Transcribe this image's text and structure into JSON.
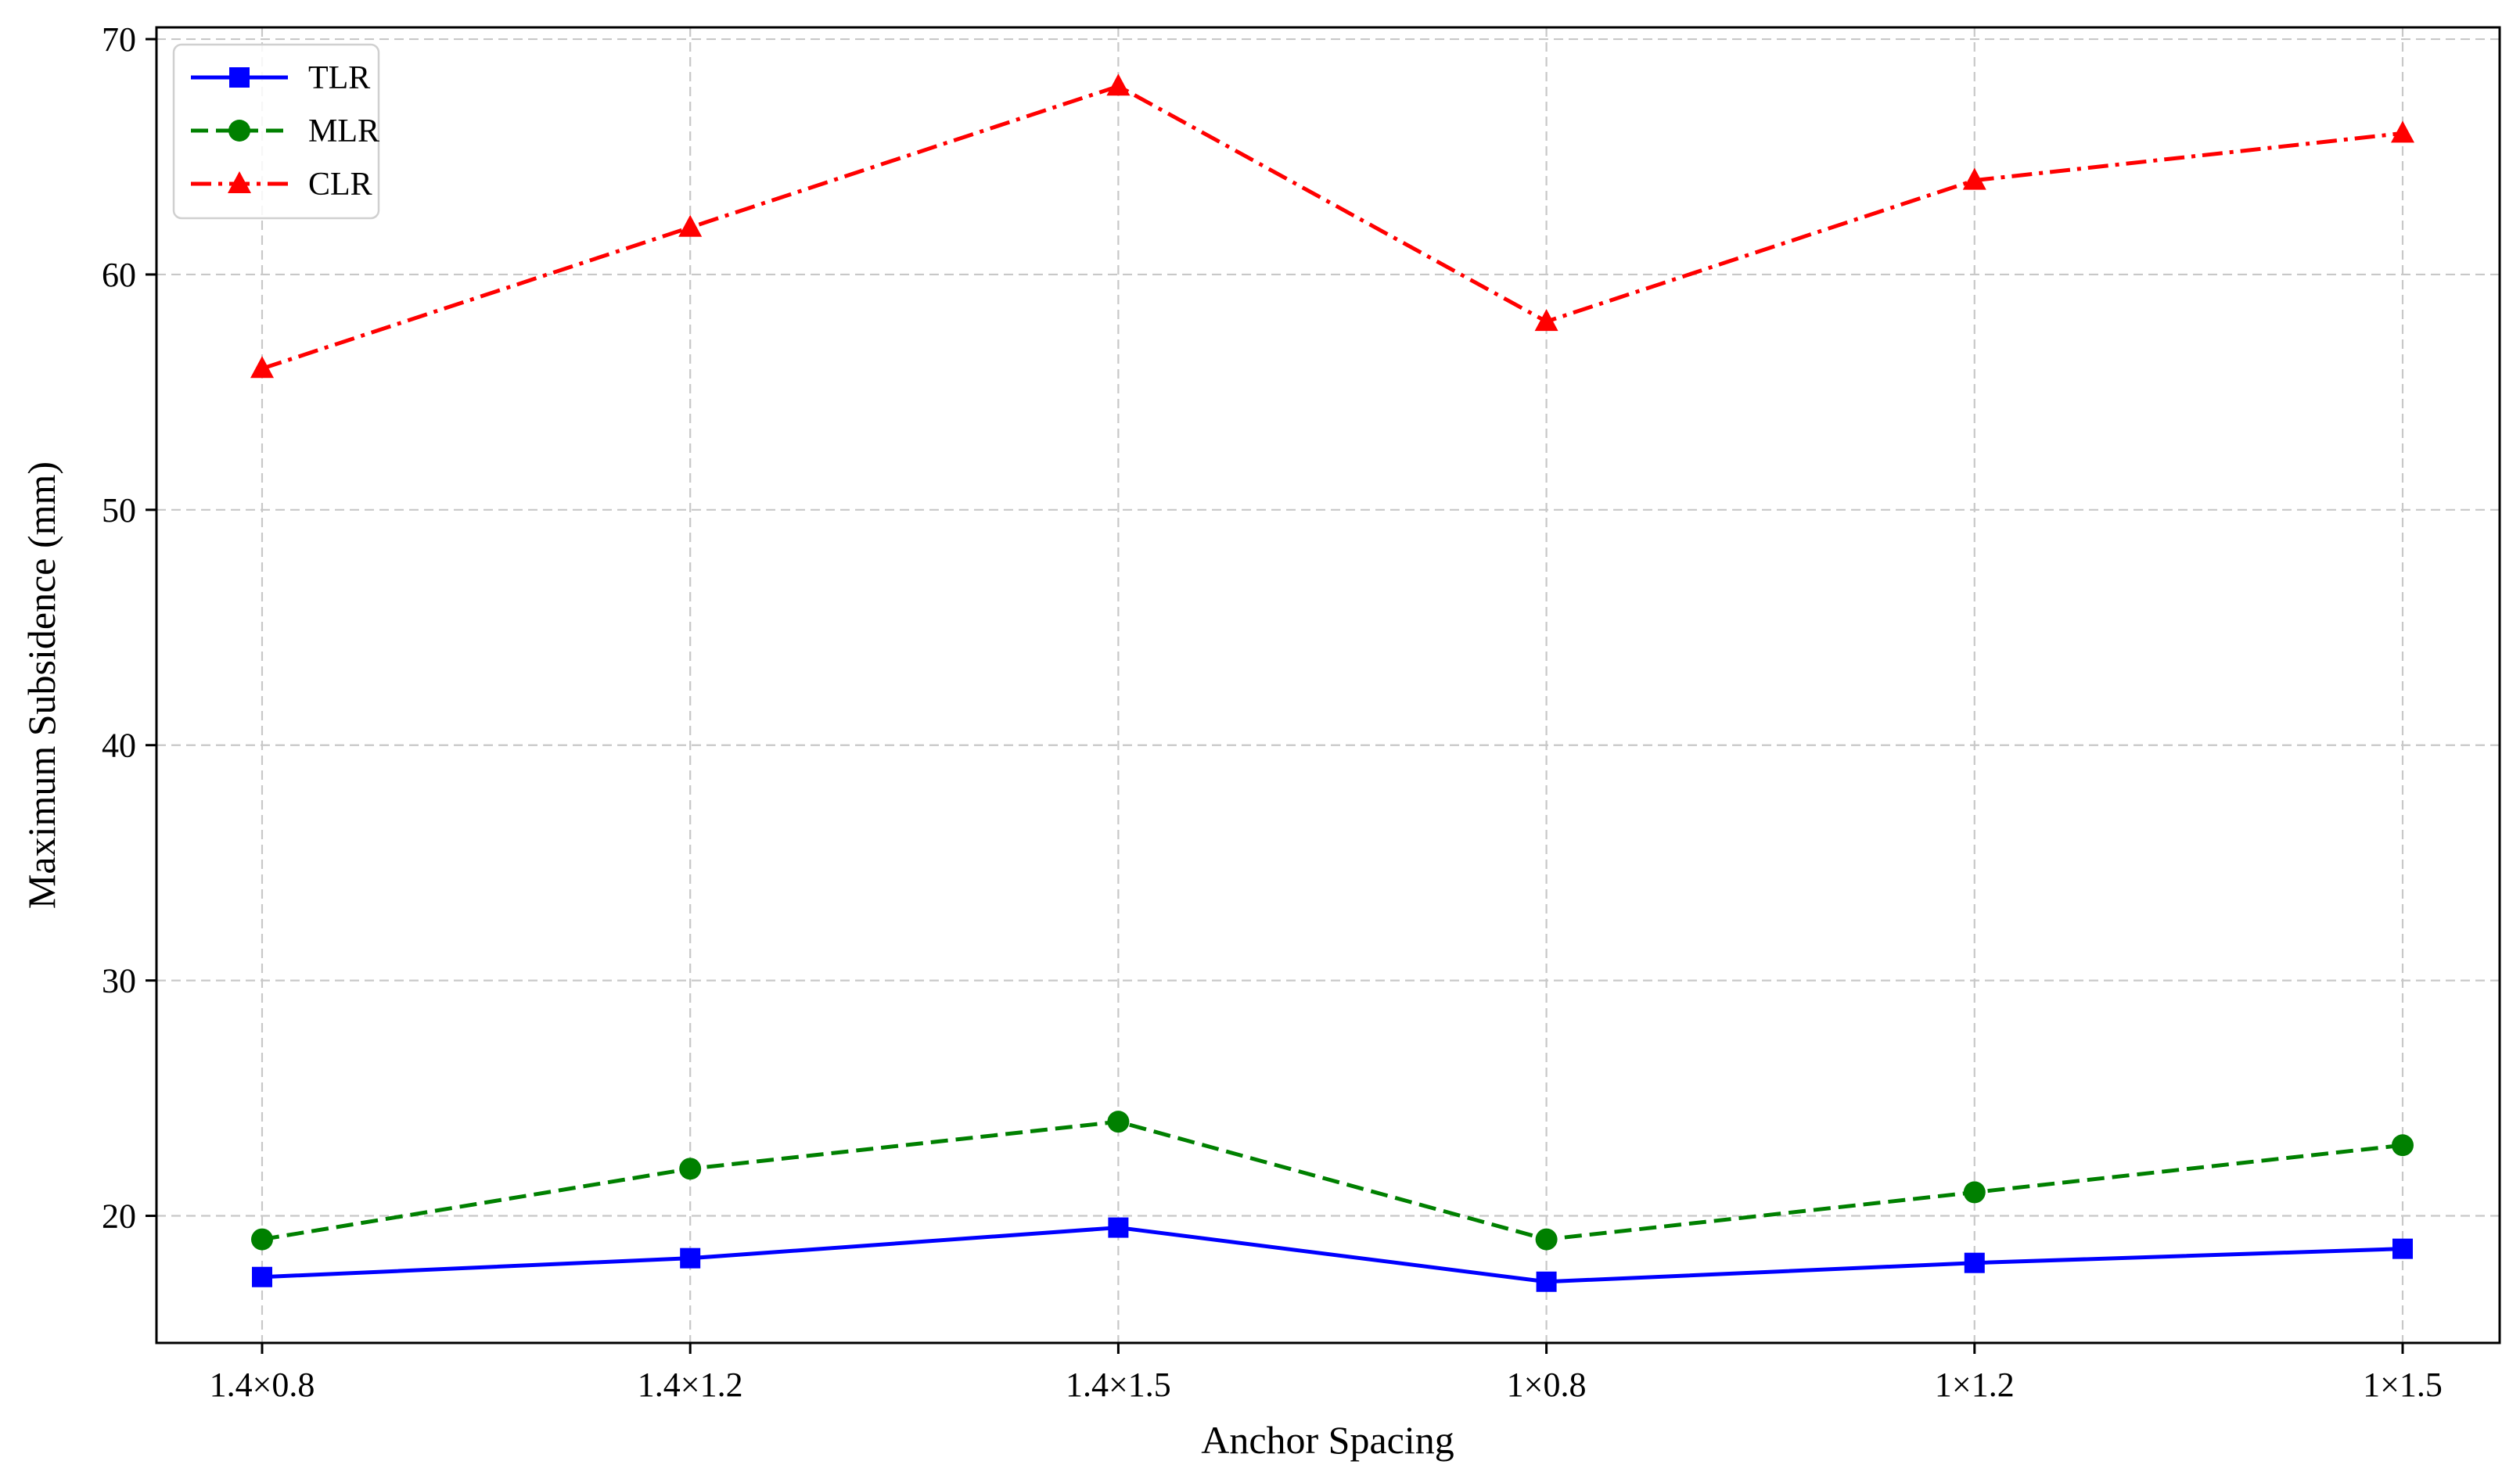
{
  "chart_data": {
    "type": "line",
    "title": "",
    "xlabel": "Anchor Spacing",
    "ylabel": "Maximum Subsidence (mm)",
    "categories": [
      "1.4×0.8",
      "1.4×1.2",
      "1.4×1.5",
      "1×0.8",
      "1×1.2",
      "1×1.5"
    ],
    "ylim": [
      14.6,
      70.5
    ],
    "yticks": [
      20,
      30,
      40,
      50,
      60,
      70
    ],
    "grid": true,
    "legend_position": "top-left",
    "series": [
      {
        "name": "TLR",
        "values": [
          17.4,
          18.2,
          19.5,
          17.2,
          18.0,
          18.6
        ],
        "color": "#0000ff",
        "line_style": "solid",
        "marker": "square"
      },
      {
        "name": "MLR",
        "values": [
          19.0,
          22.0,
          24.0,
          19.0,
          21.0,
          23.0
        ],
        "color": "#008000",
        "line_style": "dashed",
        "marker": "circle"
      },
      {
        "name": "CLR",
        "values": [
          56.0,
          62.0,
          68.0,
          58.0,
          64.0,
          66.0
        ],
        "color": "#ff0000",
        "line_style": "dash-dot",
        "marker": "triangle"
      }
    ]
  }
}
